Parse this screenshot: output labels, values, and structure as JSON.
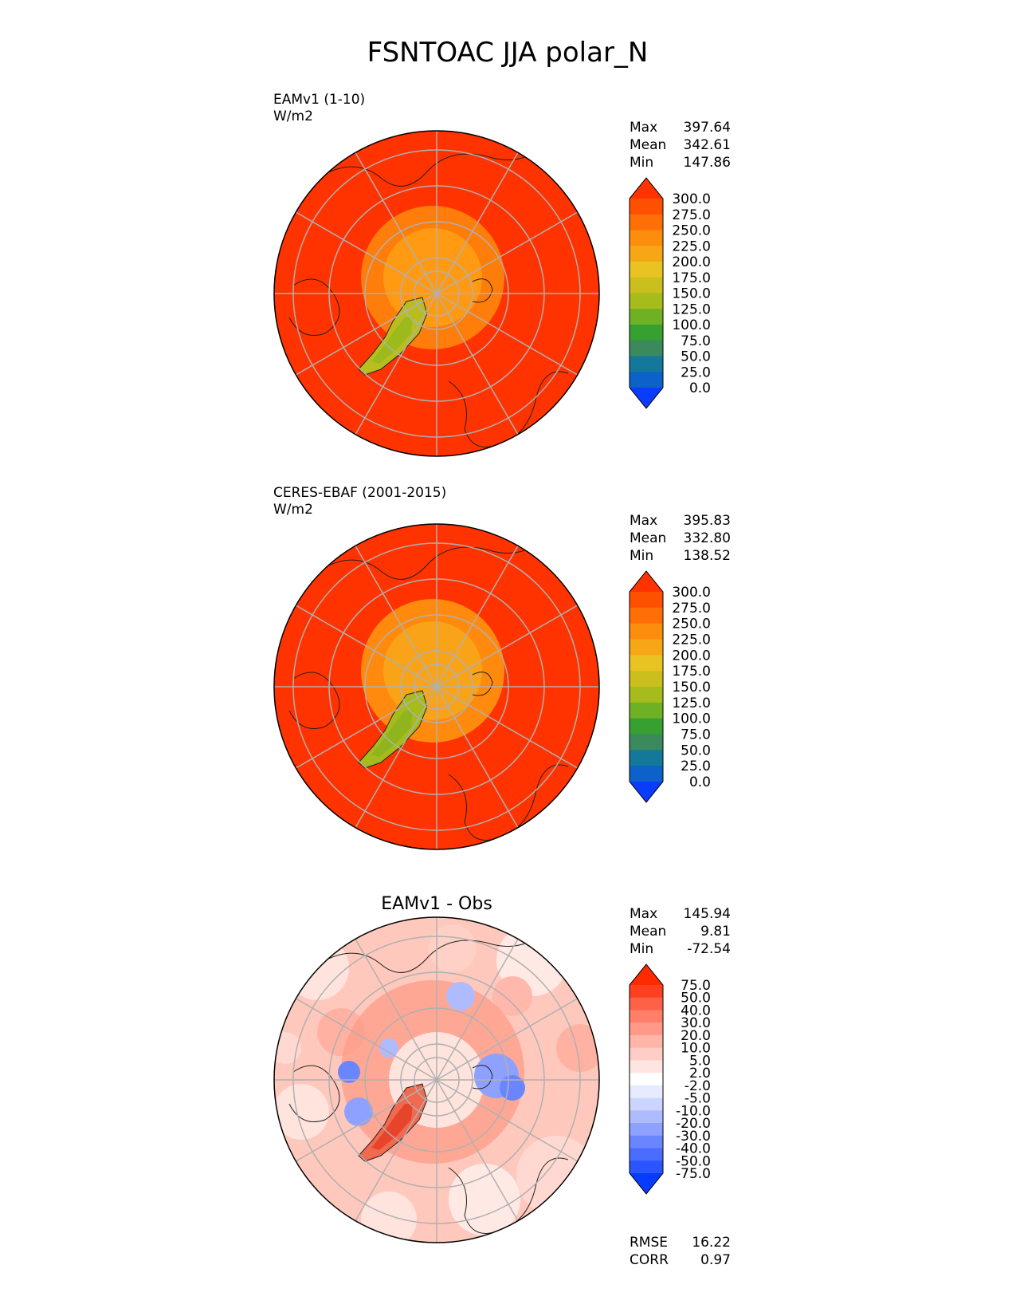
{
  "figure": {
    "title": "FSNTOAC JJA polar_N"
  },
  "chart_data": [
    {
      "type": "heatmap",
      "projection": "north-polar-stereographic",
      "name": "test",
      "title_left": "EAMv1 (1-10)",
      "units": "W/m2",
      "stats": [
        {
          "label": "Max",
          "value": "397.64"
        },
        {
          "label": "Mean",
          "value": "342.61"
        },
        {
          "label": "Min",
          "value": "147.86"
        }
      ],
      "colorbar": {
        "levels": [
          0,
          25,
          50,
          75,
          100,
          125,
          150,
          175,
          200,
          225,
          250,
          275,
          300
        ],
        "labels": [
          "0.0",
          "25.0",
          "50.0",
          "75.0",
          "100.0",
          "125.0",
          "150.0",
          "175.0",
          "200.0",
          "225.0",
          "250.0",
          "275.0",
          "300.0"
        ],
        "colors": [
          "#0a3cff",
          "#0c62c8",
          "#13789a",
          "#3a8a5e",
          "#36a030",
          "#6fb124",
          "#a6bb1c",
          "#cbbf1e",
          "#e8c321",
          "#f7a616",
          "#fd8d0c",
          "#ff6f05",
          "#ff4f00",
          "#ff3300"
        ],
        "extend": "both"
      },
      "field": {
        "background": "#ff3300",
        "arctic_ring1": "#ff7d0a",
        "arctic_ring2": "#ff9a12",
        "greenland_outer": "#b9be1f",
        "greenland_inner": "#9dba1c"
      }
    },
    {
      "type": "heatmap",
      "projection": "north-polar-stereographic",
      "name": "reference",
      "title_left": "CERES-EBAF (2001-2015)",
      "units": "W/m2",
      "stats": [
        {
          "label": "Max",
          "value": "395.83"
        },
        {
          "label": "Mean",
          "value": "332.80"
        },
        {
          "label": "Min",
          "value": "138.52"
        }
      ],
      "colorbar": {
        "levels": [
          0,
          25,
          50,
          75,
          100,
          125,
          150,
          175,
          200,
          225,
          250,
          275,
          300
        ],
        "labels": [
          "0.0",
          "25.0",
          "50.0",
          "75.0",
          "100.0",
          "125.0",
          "150.0",
          "175.0",
          "200.0",
          "225.0",
          "250.0",
          "275.0",
          "300.0"
        ],
        "colors": [
          "#0a3cff",
          "#0c62c8",
          "#13789a",
          "#3a8a5e",
          "#36a030",
          "#6fb124",
          "#a6bb1c",
          "#cbbf1e",
          "#e8c321",
          "#f7a616",
          "#fd8d0c",
          "#ff6f05",
          "#ff4f00",
          "#ff3300"
        ],
        "extend": "both"
      },
      "field": {
        "background": "#ff3300",
        "arctic_ring1": "#ff8a0d",
        "arctic_ring2": "#f9a318",
        "greenland_outer": "#a6bb1c",
        "greenland_inner": "#8fb41e"
      }
    },
    {
      "type": "heatmap",
      "projection": "north-polar-stereographic",
      "name": "diff",
      "title_center": "EAMv1 - Obs",
      "stats": [
        {
          "label": "Max",
          "value": "145.94"
        },
        {
          "label": "Mean",
          "value": "9.81"
        },
        {
          "label": "Min",
          "value": "-72.54"
        }
      ],
      "metrics": [
        {
          "label": "RMSE",
          "value": "16.22"
        },
        {
          "label": "CORR",
          "value": "0.97"
        }
      ],
      "colorbar": {
        "levels": [
          -75,
          -50,
          -40,
          -30,
          -20,
          -10,
          -5,
          -2,
          2,
          5,
          10,
          20,
          30,
          40,
          50,
          75
        ],
        "labels": [
          "-75.0",
          "-50.0",
          "-40.0",
          "-30.0",
          "-20.0",
          "-10.0",
          "-5.0",
          "-2.0",
          "2.0",
          "5.0",
          "10.0",
          "20.0",
          "30.0",
          "40.0",
          "50.0",
          "75.0"
        ],
        "colors": [
          "#053cff",
          "#2a55ff",
          "#4a6cff",
          "#6a86ff",
          "#8ea1ff",
          "#aebbff",
          "#ccd5ff",
          "#e6ebff",
          "#ffffff",
          "#ffe5e1",
          "#ffcdc5",
          "#ffb5a8",
          "#ff9a89",
          "#ff7f69",
          "#ff6148",
          "#ff4020",
          "#ff2a00"
        ],
        "extend": "both"
      },
      "field": {
        "background": "#ffc8bd",
        "arctic_ring1": "#ff9c88",
        "arctic_ring2": "#ffe3dd",
        "greenland_outer": "#f06a50",
        "greenland_inner": "#e8442c"
      }
    }
  ]
}
